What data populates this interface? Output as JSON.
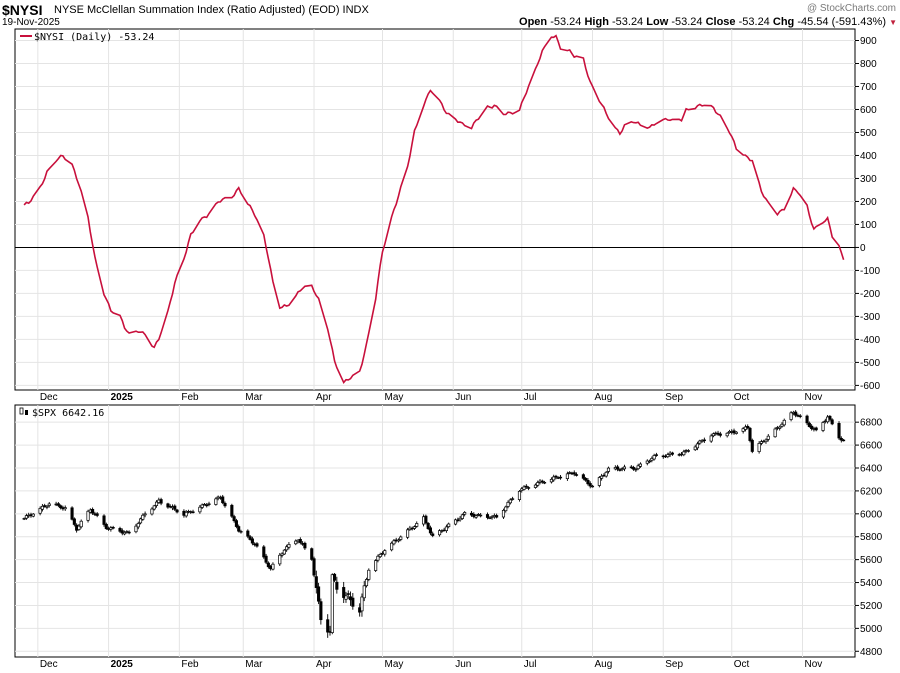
{
  "header": {
    "symbol": "$NYSI",
    "title": "NYSE McClellan Summation Index (Ratio Adjusted) (EOD)  INDX",
    "date": "19-Nov-2025",
    "brand": "@ StockCharts.com",
    "open_label": "Open",
    "open": "-53.24",
    "high_label": "High",
    "high": "-53.24",
    "low_label": "Low",
    "low": "-53.24",
    "close_label": "Close",
    "close": "-53.24",
    "chg_label": "Chg",
    "chg": "-45.54 (-591.43%)",
    "chg_arrow": "▼",
    "down_color": "#c0203c"
  },
  "chart_data": [
    {
      "type": "line",
      "legend": "$NYSI (Daily) -53.24",
      "series": [
        {
          "name": "$NYSI (Daily)",
          "color": "#c8103c"
        }
      ],
      "ylim": [
        -620,
        950
      ],
      "yticks": [
        900,
        800,
        700,
        600,
        500,
        400,
        300,
        200,
        100,
        0,
        -100,
        -200,
        -300,
        -400,
        -500,
        -600
      ],
      "zero_line": 0,
      "x_labels": [
        "Dec",
        "2025",
        "Feb",
        "Mar",
        "Apr",
        "May",
        "Jun",
        "Jul",
        "Aug",
        "Sep",
        "Oct",
        "Nov"
      ],
      "bold_labels": [
        "2025"
      ],
      "anchors": [
        [
          "2024-11-25",
          185
        ],
        [
          "2024-11-27",
          190
        ],
        [
          "2024-12-02",
          260
        ],
        [
          "2024-12-05",
          330
        ],
        [
          "2024-12-09",
          380
        ],
        [
          "2024-12-12",
          395
        ],
        [
          "2024-12-16",
          360
        ],
        [
          "2024-12-19",
          280
        ],
        [
          "2024-12-23",
          130
        ],
        [
          "2024-12-26",
          -50
        ],
        [
          "2024-12-30",
          -200
        ],
        [
          "2025-01-02",
          -270
        ],
        [
          "2025-01-06",
          -300
        ],
        [
          "2025-01-08",
          -350
        ],
        [
          "2025-01-10",
          -380
        ],
        [
          "2025-01-14",
          -360
        ],
        [
          "2025-01-17",
          -375
        ],
        [
          "2025-01-21",
          -440
        ],
        [
          "2025-01-23",
          -400
        ],
        [
          "2025-01-27",
          -280
        ],
        [
          "2025-01-30",
          -150
        ],
        [
          "2025-02-03",
          -50
        ],
        [
          "2025-02-06",
          50
        ],
        [
          "2025-02-10",
          120
        ],
        [
          "2025-02-13",
          140
        ],
        [
          "2025-02-18",
          195
        ],
        [
          "2025-02-20",
          205
        ],
        [
          "2025-02-24",
          220
        ],
        [
          "2025-02-27",
          260
        ],
        [
          "2025-03-03",
          190
        ],
        [
          "2025-03-06",
          140
        ],
        [
          "2025-03-10",
          50
        ],
        [
          "2025-03-12",
          -40
        ],
        [
          "2025-03-14",
          -150
        ],
        [
          "2025-03-17",
          -260
        ],
        [
          "2025-03-20",
          -260
        ],
        [
          "2025-03-24",
          -210
        ],
        [
          "2025-03-27",
          -170
        ],
        [
          "2025-03-31",
          -170
        ],
        [
          "2025-04-03",
          -230
        ],
        [
          "2025-04-07",
          -350
        ],
        [
          "2025-04-10",
          -490
        ],
        [
          "2025-04-14",
          -590
        ],
        [
          "2025-04-17",
          -570
        ],
        [
          "2025-04-21",
          -540
        ],
        [
          "2025-04-24",
          -420
        ],
        [
          "2025-04-28",
          -220
        ],
        [
          "2025-05-01",
          -20
        ],
        [
          "2025-05-05",
          130
        ],
        [
          "2025-05-08",
          230
        ],
        [
          "2025-05-12",
          350
        ],
        [
          "2025-05-15",
          500
        ],
        [
          "2025-05-19",
          620
        ],
        [
          "2025-05-22",
          690
        ],
        [
          "2025-05-27",
          620
        ],
        [
          "2025-05-29",
          580
        ],
        [
          "2025-06-02",
          560
        ],
        [
          "2025-06-05",
          540
        ],
        [
          "2025-06-09",
          520
        ],
        [
          "2025-06-12",
          560
        ],
        [
          "2025-06-16",
          610
        ],
        [
          "2025-06-19",
          620
        ],
        [
          "2025-06-23",
          580
        ],
        [
          "2025-06-26",
          580
        ],
        [
          "2025-06-30",
          600
        ],
        [
          "2025-07-03",
          680
        ],
        [
          "2025-07-07",
          770
        ],
        [
          "2025-07-10",
          850
        ],
        [
          "2025-07-14",
          920
        ],
        [
          "2025-07-16",
          920
        ],
        [
          "2025-07-18",
          870
        ],
        [
          "2025-07-22",
          850
        ],
        [
          "2025-07-24",
          830
        ],
        [
          "2025-07-28",
          820
        ],
        [
          "2025-07-31",
          720
        ],
        [
          "2025-08-04",
          640
        ],
        [
          "2025-08-07",
          580
        ],
        [
          "2025-08-11",
          520
        ],
        [
          "2025-08-13",
          500
        ],
        [
          "2025-08-15",
          530
        ],
        [
          "2025-08-19",
          545
        ],
        [
          "2025-08-22",
          530
        ],
        [
          "2025-08-26",
          525
        ],
        [
          "2025-08-29",
          545
        ],
        [
          "2025-09-03",
          555
        ],
        [
          "2025-09-05",
          550
        ],
        [
          "2025-09-09",
          560
        ],
        [
          "2025-09-11",
          600
        ],
        [
          "2025-09-16",
          610
        ],
        [
          "2025-09-19",
          620
        ],
        [
          "2025-09-23",
          610
        ],
        [
          "2025-09-26",
          570
        ],
        [
          "2025-09-30",
          500
        ],
        [
          "2025-10-03",
          430
        ],
        [
          "2025-10-07",
          400
        ],
        [
          "2025-10-10",
          380
        ],
        [
          "2025-10-14",
          240
        ],
        [
          "2025-10-17",
          190
        ],
        [
          "2025-10-21",
          150
        ],
        [
          "2025-10-24",
          170
        ],
        [
          "2025-10-28",
          250
        ],
        [
          "2025-10-30",
          240
        ],
        [
          "2025-11-03",
          180
        ],
        [
          "2025-11-06",
          80
        ],
        [
          "2025-11-10",
          110
        ],
        [
          "2025-11-12",
          120
        ],
        [
          "2025-11-14",
          50
        ],
        [
          "2025-11-17",
          10
        ],
        [
          "2025-11-19",
          -53.24
        ]
      ]
    },
    {
      "type": "candlestick",
      "legend": "$SPX 6642.16",
      "series": [
        {
          "name": "$SPX"
        }
      ],
      "ylim": [
        4750,
        6950
      ],
      "yticks": [
        6800,
        6600,
        6400,
        6200,
        6000,
        5800,
        5600,
        5400,
        5200,
        5000,
        4800
      ],
      "x_labels": [
        "Dec",
        "2025",
        "Feb",
        "Mar",
        "Apr",
        "May",
        "Jun",
        "Jul",
        "Aug",
        "Sep",
        "Oct",
        "Nov"
      ],
      "bold_labels": [
        "2025"
      ],
      "anchors": [
        [
          "2024-11-25",
          5960
        ],
        [
          "2024-12-02",
          6040
        ],
        [
          "2024-12-06",
          6090
        ],
        [
          "2024-12-13",
          6050
        ],
        [
          "2024-12-18",
          5870
        ],
        [
          "2024-12-24",
          6040
        ],
        [
          "2024-12-31",
          5880
        ],
        [
          "2025-01-10",
          5830
        ],
        [
          "2025-01-17",
          6000
        ],
        [
          "2025-01-23",
          6110
        ],
        [
          "2025-02-03",
          5995
        ],
        [
          "2025-02-07",
          6030
        ],
        [
          "2025-02-19",
          6144
        ],
        [
          "2025-02-27",
          5860
        ],
        [
          "2025-03-06",
          5740
        ],
        [
          "2025-03-13",
          5520
        ],
        [
          "2025-03-19",
          5690
        ],
        [
          "2025-03-25",
          5780
        ],
        [
          "2025-03-31",
          5610
        ],
        [
          "2025-04-04",
          5075
        ],
        [
          "2025-04-08",
          4980
        ],
        [
          "2025-04-09",
          5460
        ],
        [
          "2025-04-11",
          5360
        ],
        [
          "2025-04-21",
          5160
        ],
        [
          "2025-04-25",
          5520
        ],
        [
          "2025-05-02",
          5690
        ],
        [
          "2025-05-12",
          5850
        ],
        [
          "2025-05-19",
          5960
        ],
        [
          "2025-05-23",
          5800
        ],
        [
          "2025-06-06",
          6000
        ],
        [
          "2025-06-13",
          5980
        ],
        [
          "2025-06-20",
          5970
        ],
        [
          "2025-06-30",
          6210
        ],
        [
          "2025-07-10",
          6280
        ],
        [
          "2025-07-24",
          6360
        ],
        [
          "2025-08-01",
          6240
        ],
        [
          "2025-08-08",
          6390
        ],
        [
          "2025-08-20",
          6400
        ],
        [
          "2025-08-28",
          6500
        ],
        [
          "2025-09-10",
          6530
        ],
        [
          "2025-09-22",
          6690
        ],
        [
          "2025-10-01",
          6710
        ],
        [
          "2025-10-08",
          6750
        ],
        [
          "2025-10-10",
          6550
        ],
        [
          "2025-10-20",
          6730
        ],
        [
          "2025-10-28",
          6890
        ],
        [
          "2025-11-04",
          6770
        ],
        [
          "2025-11-07",
          6720
        ],
        [
          "2025-11-12",
          6850
        ],
        [
          "2025-11-17",
          6670
        ],
        [
          "2025-11-19",
          6642.16
        ]
      ]
    }
  ]
}
